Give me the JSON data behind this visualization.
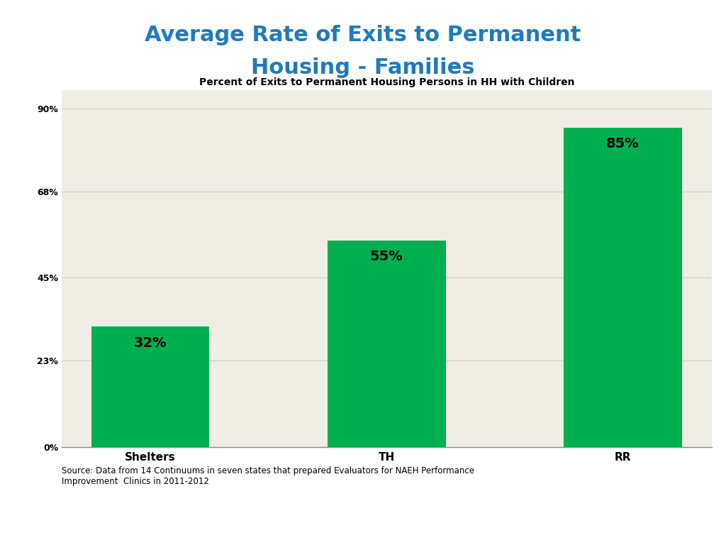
{
  "title_line1": "Average Rate of Exits to Permanent",
  "title_line2": "Housing - Families",
  "title_color": "#1F7BBF",
  "chart_title": "Percent of Exits to Permanent Housing Persons in HH with Children",
  "categories": [
    "Shelters",
    "TH",
    "RR"
  ],
  "values": [
    32,
    55,
    85
  ],
  "bar_color": "#00B050",
  "bar_labels": [
    "32%",
    "55%",
    "85%"
  ],
  "yticks": [
    0,
    23,
    45,
    68,
    90
  ],
  "ytick_labels": [
    "0%",
    "23%",
    "45%",
    "68%",
    "90%"
  ],
  "ylim": [
    0,
    95
  ],
  "background_color": "#EEEEE5",
  "source_text": "Source: Data from 14 Continuums in seven states that prepared Evaluators for NAEH Performance\nImprovement  Clinics in 2011-2012",
  "chart_title_fontsize": 10,
  "bar_label_fontsize": 14,
  "xlabel_fontsize": 11,
  "ytick_fontsize": 9,
  "source_fontsize": 8.5,
  "title_fontsize": 22
}
